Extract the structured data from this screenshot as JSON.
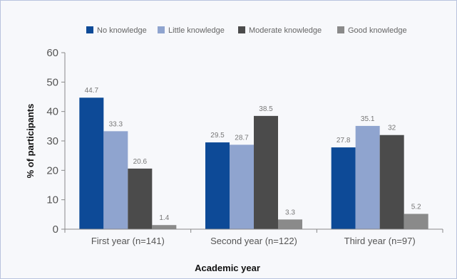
{
  "chart_data": {
    "type": "bar",
    "categories": [
      "First year (n=141)",
      "Second year (n=122)",
      "Third year (n=97)"
    ],
    "series": [
      {
        "name": "No knowledge",
        "values": [
          44.7,
          29.5,
          27.8
        ],
        "color": "#0d4a97"
      },
      {
        "name": "Little knowledge",
        "values": [
          33.3,
          28.7,
          35.1
        ],
        "color": "#8fa4cf"
      },
      {
        "name": "Moderate knowledge",
        "values": [
          20.6,
          38.5,
          32
        ],
        "color": "#4b4b4b"
      },
      {
        "name": "Good knowledge",
        "values": [
          1.4,
          3.3,
          5.2
        ],
        "color": "#8a8a8a"
      }
    ],
    "xlabel": "Academic year",
    "ylabel": "% of participants",
    "ylim": [
      0,
      60
    ],
    "yticks": [
      0,
      10,
      20,
      30,
      40,
      50,
      60
    ],
    "grid": false,
    "legend_position": "top"
  }
}
